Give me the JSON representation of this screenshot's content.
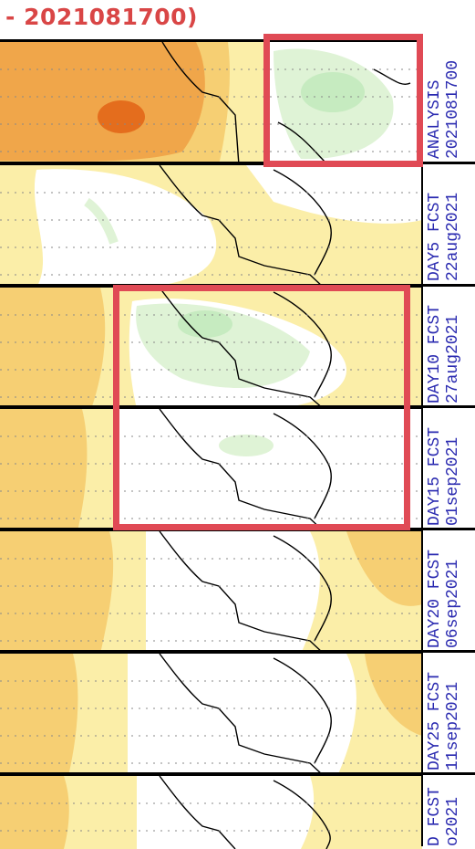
{
  "header": {
    "title": "- 2021081700)"
  },
  "panels": [
    {
      "line1": "ANALYSIS",
      "line2": "2021081700"
    },
    {
      "line1": "DAY5 FCST",
      "line2": "22aug2021"
    },
    {
      "line1": "DAY10 FCST",
      "line2": "27aug2021"
    },
    {
      "line1": "DAY15 FCST",
      "line2": "01sep2021"
    },
    {
      "line1": "DAY20 FCST",
      "line2": "06sep2021"
    },
    {
      "line1": "DAY25 FCST",
      "line2": "11sep2021"
    },
    {
      "line1": "D FCST",
      "line2": "o2021"
    }
  ],
  "colors": {
    "highlight": "#e04a55",
    "label": "#2a2ab0",
    "title": "#d94646",
    "warm_light": "#fbeea8",
    "warm_mid": "#f6cf73",
    "warm_strong": "#f0a64a",
    "warm_peak": "#e46d1d",
    "cool_light": "#dff3d6",
    "cool_mid": "#c6ebc0"
  }
}
